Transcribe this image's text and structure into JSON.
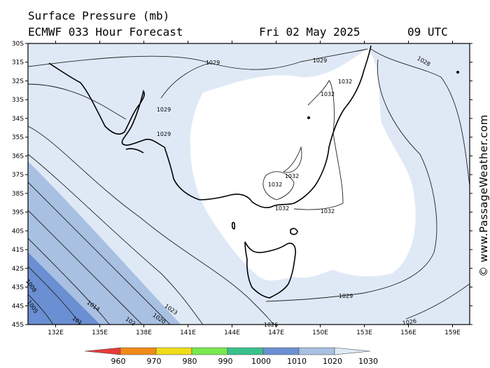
{
  "header": {
    "title": "Surface Pressure (mb)",
    "model": "ECMWF 033 Hour Forecast",
    "date": "Fri 02 May 2025",
    "time": "09 UTC"
  },
  "credit": "© www.PassageWeather.com",
  "lat_labels": [
    "30S",
    "31S",
    "32S",
    "33S",
    "34S",
    "35S",
    "36S",
    "37S",
    "38S",
    "39S",
    "40S",
    "41S",
    "42S",
    "43S",
    "44S",
    "45S"
  ],
  "lon_labels": [
    "132E",
    "135E",
    "138E",
    "141E",
    "144E",
    "147E",
    "150E",
    "153E",
    "156E",
    "159E"
  ],
  "isobar_labels": [
    "1029",
    "1029",
    "1028",
    "1032",
    "1032",
    "1029",
    "1029",
    "1032",
    "1032",
    "1032",
    "1032",
    "1029",
    "1026",
    "1008",
    "1005",
    "1014",
    "101",
    "102",
    "1020",
    "1023",
    "1026"
  ],
  "colorbar": {
    "labels": [
      "960",
      "970",
      "980",
      "990",
      "1000",
      "1010",
      "1020",
      "1030"
    ],
    "colors": [
      "#e83a3a",
      "#f08a18",
      "#f0dc1a",
      "#78e850",
      "#38c08a",
      "#6a8fd2",
      "#a8c0e2",
      "#dfe9f6"
    ]
  }
}
